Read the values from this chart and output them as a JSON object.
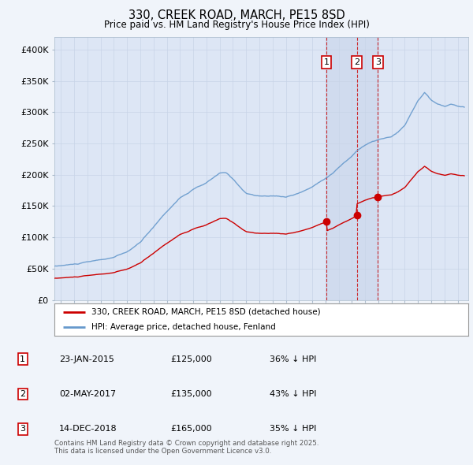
{
  "title": "330, CREEK ROAD, MARCH, PE15 8SD",
  "subtitle": "Price paid vs. HM Land Registry's House Price Index (HPI)",
  "background_color": "#f0f4fa",
  "plot_bg_color": "#e8eef8",
  "legend_entry1": "330, CREEK ROAD, MARCH, PE15 8SD (detached house)",
  "legend_entry2": "HPI: Average price, detached house, Fenland",
  "table_rows": [
    {
      "num": "1",
      "date": "23-JAN-2015",
      "price": "£125,000",
      "pct": "36% ↓ HPI"
    },
    {
      "num": "2",
      "date": "02-MAY-2017",
      "price": "£135,000",
      "pct": "43% ↓ HPI"
    },
    {
      "num": "3",
      "date": "14-DEC-2018",
      "price": "£165,000",
      "pct": "35% ↓ HPI"
    }
  ],
  "sale_dates_num": [
    2015.07,
    2017.37,
    2018.96
  ],
  "sale_prices": [
    125000,
    135000,
    165000
  ],
  "vline_color": "#cc0000",
  "hpi_color": "#6699cc",
  "price_color": "#cc0000",
  "footnote": "Contains HM Land Registry data © Crown copyright and database right 2025.\nThis data is licensed under the Open Government Licence v3.0.",
  "ylim": [
    0,
    420000
  ],
  "yticks": [
    0,
    50000,
    100000,
    150000,
    200000,
    250000,
    300000,
    350000,
    400000
  ],
  "ytick_labels": [
    "£0",
    "£50K",
    "£100K",
    "£150K",
    "£200K",
    "£250K",
    "£300K",
    "£350K",
    "£400K"
  ],
  "xlim_start": 1994.5,
  "xlim_end": 2025.8
}
